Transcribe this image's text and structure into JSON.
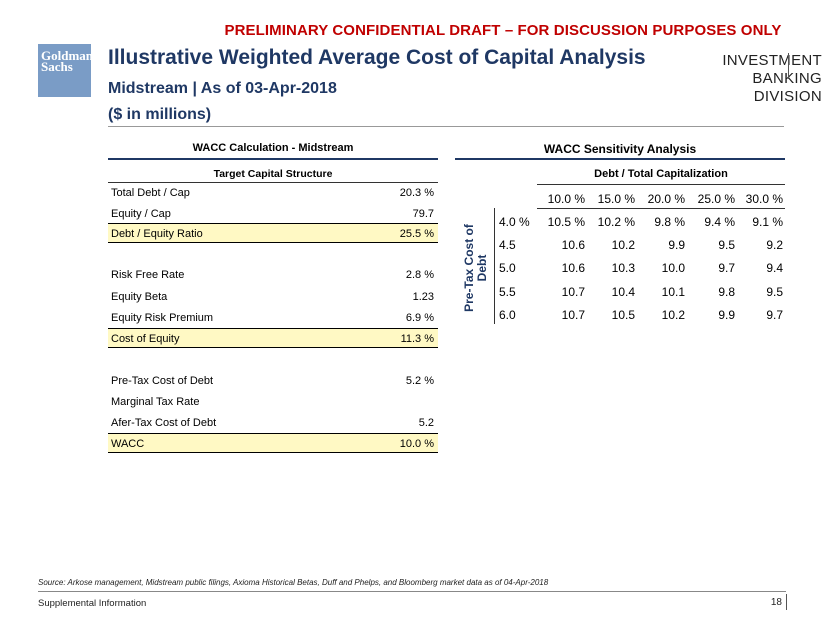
{
  "banner": "PRELIMINARY CONFIDENTIAL DRAFT – FOR DISCUSSION PURPOSES ONLY",
  "logo": {
    "line1": "Goldman",
    "line2": "Sachs"
  },
  "header": {
    "title": "Illustrative Weighted Average Cost of Capital Analysis",
    "subtitle": "Midstream | As of 03-Apr-2018",
    "units": "($ in millions)",
    "division_line1": "INVESTMENT BANKING",
    "division_line2": "DIVISION"
  },
  "wacc_calc": {
    "title": "WACC Calculation - Midstream",
    "subtitle": "Target Capital Structure",
    "rows": [
      {
        "label": "Total Debt / Cap",
        "value": "20.3 %"
      },
      {
        "label": "Equity / Cap",
        "value": "79.7"
      },
      {
        "label": "Debt / Equity Ratio",
        "value": "25.5 %"
      },
      {
        "label": "Risk Free Rate",
        "value": "2.8 %"
      },
      {
        "label": "Equity Beta",
        "value": "1.23"
      },
      {
        "label": "Equity Risk Premium",
        "value": "6.9 %"
      },
      {
        "label": "Cost of Equity",
        "value": "11.3 %"
      },
      {
        "label": "Pre-Tax Cost of Debt",
        "value": "5.2 %"
      },
      {
        "label": "Marginal Tax Rate",
        "value": ""
      },
      {
        "label": "Afer-Tax Cost of Debt",
        "value": "5.2"
      },
      {
        "label": "WACC",
        "value": "10.0 %"
      }
    ]
  },
  "sensitivity": {
    "title": "WACC Sensitivity Analysis",
    "col_header": "Debt / Total Capitalization",
    "row_header": "Pre-Tax Cost of Debt",
    "columns": [
      "10.0 %",
      "15.0 %",
      "20.0 %",
      "25.0 %",
      "30.0 %"
    ],
    "rows": [
      {
        "label": "4.0 %",
        "values": [
          "10.5 %",
          "10.2 %",
          "9.8 %",
          "9.4 %",
          "9.1 %"
        ]
      },
      {
        "label": "4.5",
        "values": [
          "10.6",
          "10.2",
          "9.9",
          "9.5",
          "9.2"
        ]
      },
      {
        "label": "5.0",
        "values": [
          "10.6",
          "10.3",
          "10.0",
          "9.7",
          "9.4"
        ]
      },
      {
        "label": "5.5",
        "values": [
          "10.7",
          "10.4",
          "10.1",
          "9.8",
          "9.5"
        ]
      },
      {
        "label": "6.0",
        "values": [
          "10.7",
          "10.5",
          "10.2",
          "9.9",
          "9.7"
        ]
      }
    ]
  },
  "footer": {
    "source": "Source: Arkose management, Midstream public filings, Axioma Historical Betas, Duff and Phelps, and Bloomberg market data as of 04-Apr-2018",
    "section": "Supplemental Information",
    "page": "18"
  }
}
